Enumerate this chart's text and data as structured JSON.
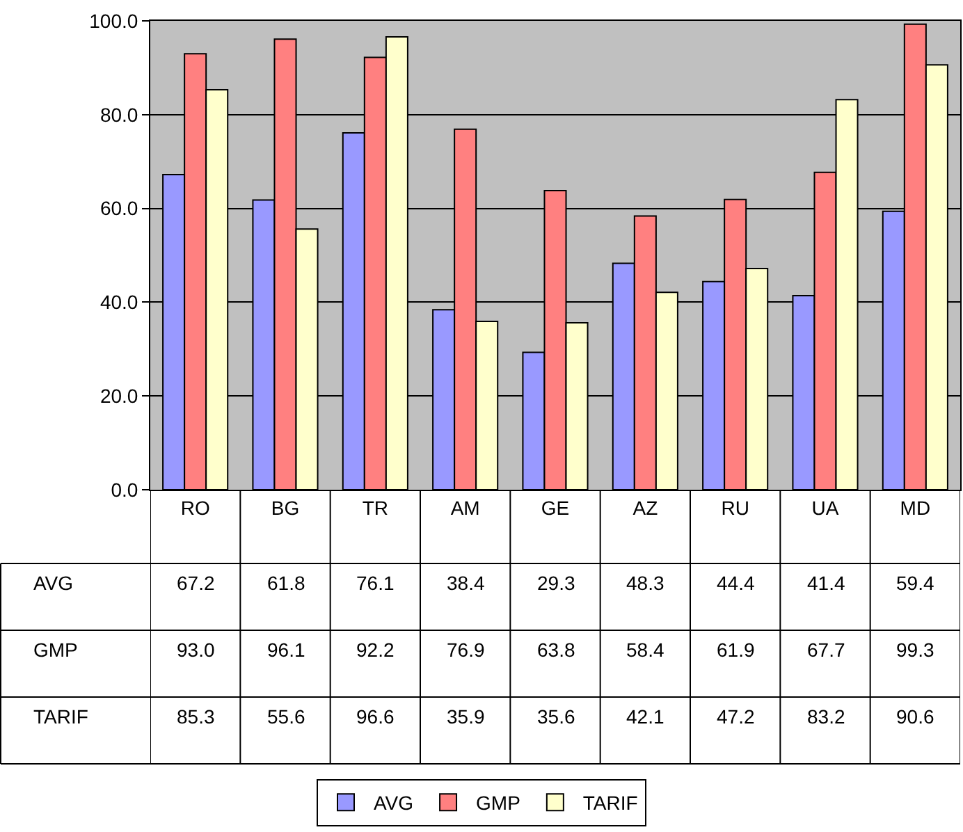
{
  "chart_data": {
    "type": "bar",
    "categories": [
      "RO",
      "BG",
      "TR",
      "AM",
      "GE",
      "AZ",
      "RU",
      "UA",
      "MD"
    ],
    "series": [
      {
        "name": "AVG",
        "color": "#9999ff",
        "values": [
          67.2,
          61.8,
          76.1,
          38.4,
          29.3,
          48.3,
          44.4,
          41.4,
          59.4
        ],
        "value_labels": [
          "67.2",
          "61.8",
          "76.1",
          "38.4",
          "29.3",
          "48.3",
          "44.4",
          "41.4",
          "59.4"
        ]
      },
      {
        "name": "GMP",
        "color": "#ff8080",
        "values": [
          93.0,
          96.1,
          92.2,
          76.9,
          63.8,
          58.4,
          61.9,
          67.7,
          99.3
        ],
        "value_labels": [
          "93.0",
          "96.1",
          "92.2",
          "76.9",
          "63.8",
          "58.4",
          "61.9",
          "67.7",
          "99.3"
        ]
      },
      {
        "name": "TARIF",
        "color": "#ffffcc",
        "values": [
          85.3,
          55.6,
          96.6,
          35.9,
          35.6,
          42.1,
          47.2,
          83.2,
          90.6
        ],
        "value_labels": [
          "85.3",
          "55.6",
          "96.6",
          "35.9",
          "35.6",
          "42.1",
          "47.2",
          "83.2",
          "90.6"
        ]
      }
    ],
    "ylim": [
      0,
      100
    ],
    "yticks": [
      {
        "value": 0,
        "label": "0.0"
      },
      {
        "value": 20,
        "label": "20.0"
      },
      {
        "value": 40,
        "label": "40.0"
      },
      {
        "value": 60,
        "label": "60.0"
      },
      {
        "value": 80,
        "label": "80.0"
      },
      {
        "value": 100,
        "label": "100.0"
      }
    ],
    "grid": "y",
    "legend": "bottom"
  }
}
